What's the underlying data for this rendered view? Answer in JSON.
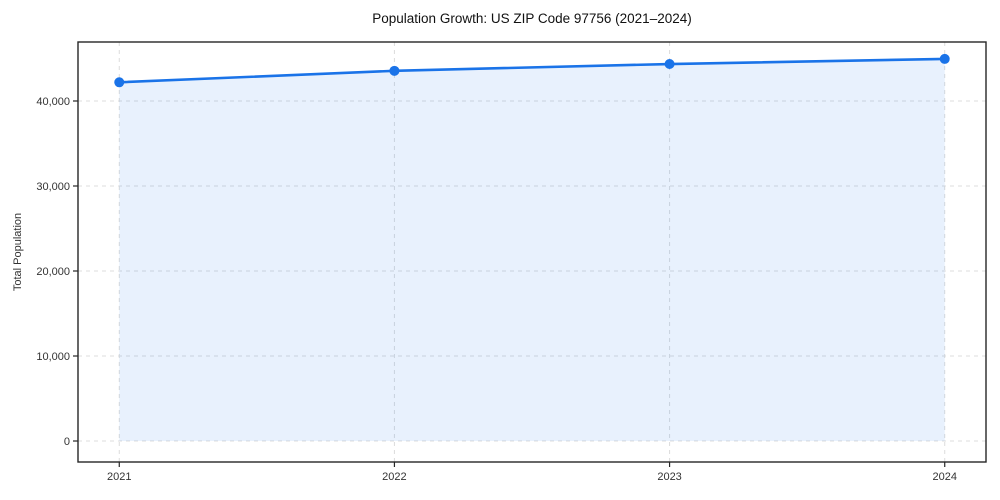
{
  "chart_data": {
    "type": "line",
    "title": "Population Growth: US ZIP Code 97756 (2021–2024)",
    "xlabel": "",
    "ylabel": "Total Population",
    "x": [
      2021,
      2022,
      2023,
      2024
    ],
    "series": [
      {
        "name": "Total Population",
        "values": [
          42200,
          43550,
          44350,
          44950
        ]
      }
    ],
    "xticks": [
      2021,
      2022,
      2023,
      2024
    ],
    "xtick_labels": [
      "2021",
      "2022",
      "2023",
      "2024"
    ],
    "yticks": [
      0,
      10000,
      20000,
      30000,
      40000
    ],
    "ytick_labels": [
      "0",
      "10,000",
      "20,000",
      "30,000",
      "40,000"
    ],
    "xlim": [
      2020.85,
      2024.15
    ],
    "ylim": [
      -2470,
      46940
    ],
    "grid": true,
    "grid_style": "dashed",
    "legend": false,
    "area_fill": true,
    "fill_baseline": 0,
    "colors": {
      "line": "#1a73e8",
      "fill": "rgba(26,115,232,0.10)",
      "grid": "#dcdcdc",
      "spine": "#262626",
      "text": "#333333",
      "background": "#ffffff"
    }
  }
}
